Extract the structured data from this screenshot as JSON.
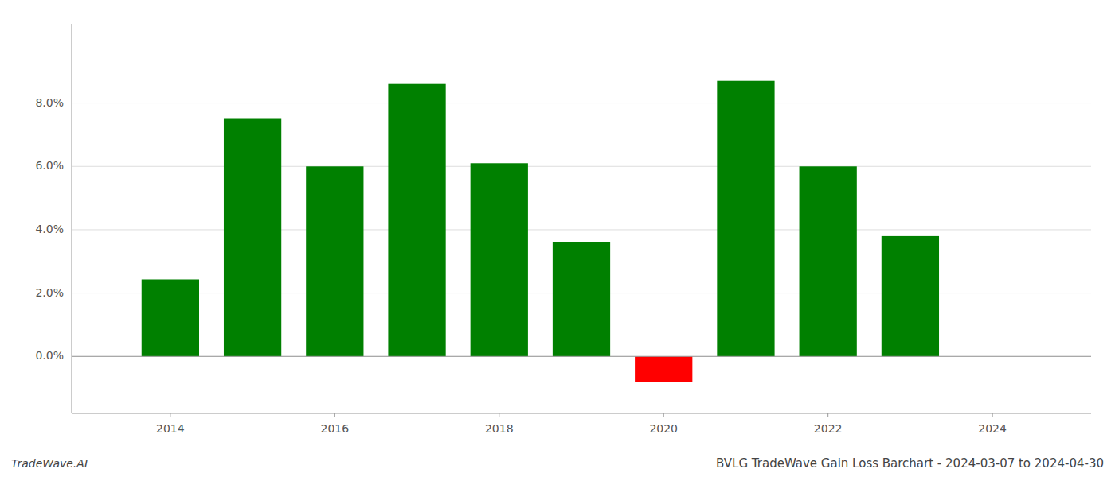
{
  "chart_data": {
    "type": "bar",
    "title": "BVLG TradeWave Gain Loss Barchart - 2024-03-07 to 2024-04-30",
    "annotations": [
      "TradeWave.AI"
    ],
    "x": [
      2014,
      2015,
      2016,
      2017,
      2018,
      2019,
      2020,
      2021,
      2022,
      2023
    ],
    "values": [
      0.0243,
      0.075,
      0.06,
      0.086,
      0.061,
      0.036,
      -0.008,
      0.087,
      0.06,
      0.038
    ],
    "colors": [
      "#008000",
      "#008000",
      "#008000",
      "#008000",
      "#008000",
      "#008000",
      "#ff0000",
      "#008000",
      "#008000",
      "#008000"
    ],
    "xlim": [
      2012.8,
      2025.2
    ],
    "xticks": [
      2014,
      2016,
      2018,
      2020,
      2022,
      2024
    ],
    "ylim": [
      -0.018,
      0.105
    ],
    "yticks": [
      {
        "value": 0.0,
        "label": "0.0%"
      },
      {
        "value": 0.02,
        "label": "2.0%"
      },
      {
        "value": 0.04,
        "label": "4.0%"
      },
      {
        "value": 0.06,
        "label": "6.0%"
      },
      {
        "value": 0.08,
        "label": "8.0%"
      }
    ],
    "grid": true
  }
}
